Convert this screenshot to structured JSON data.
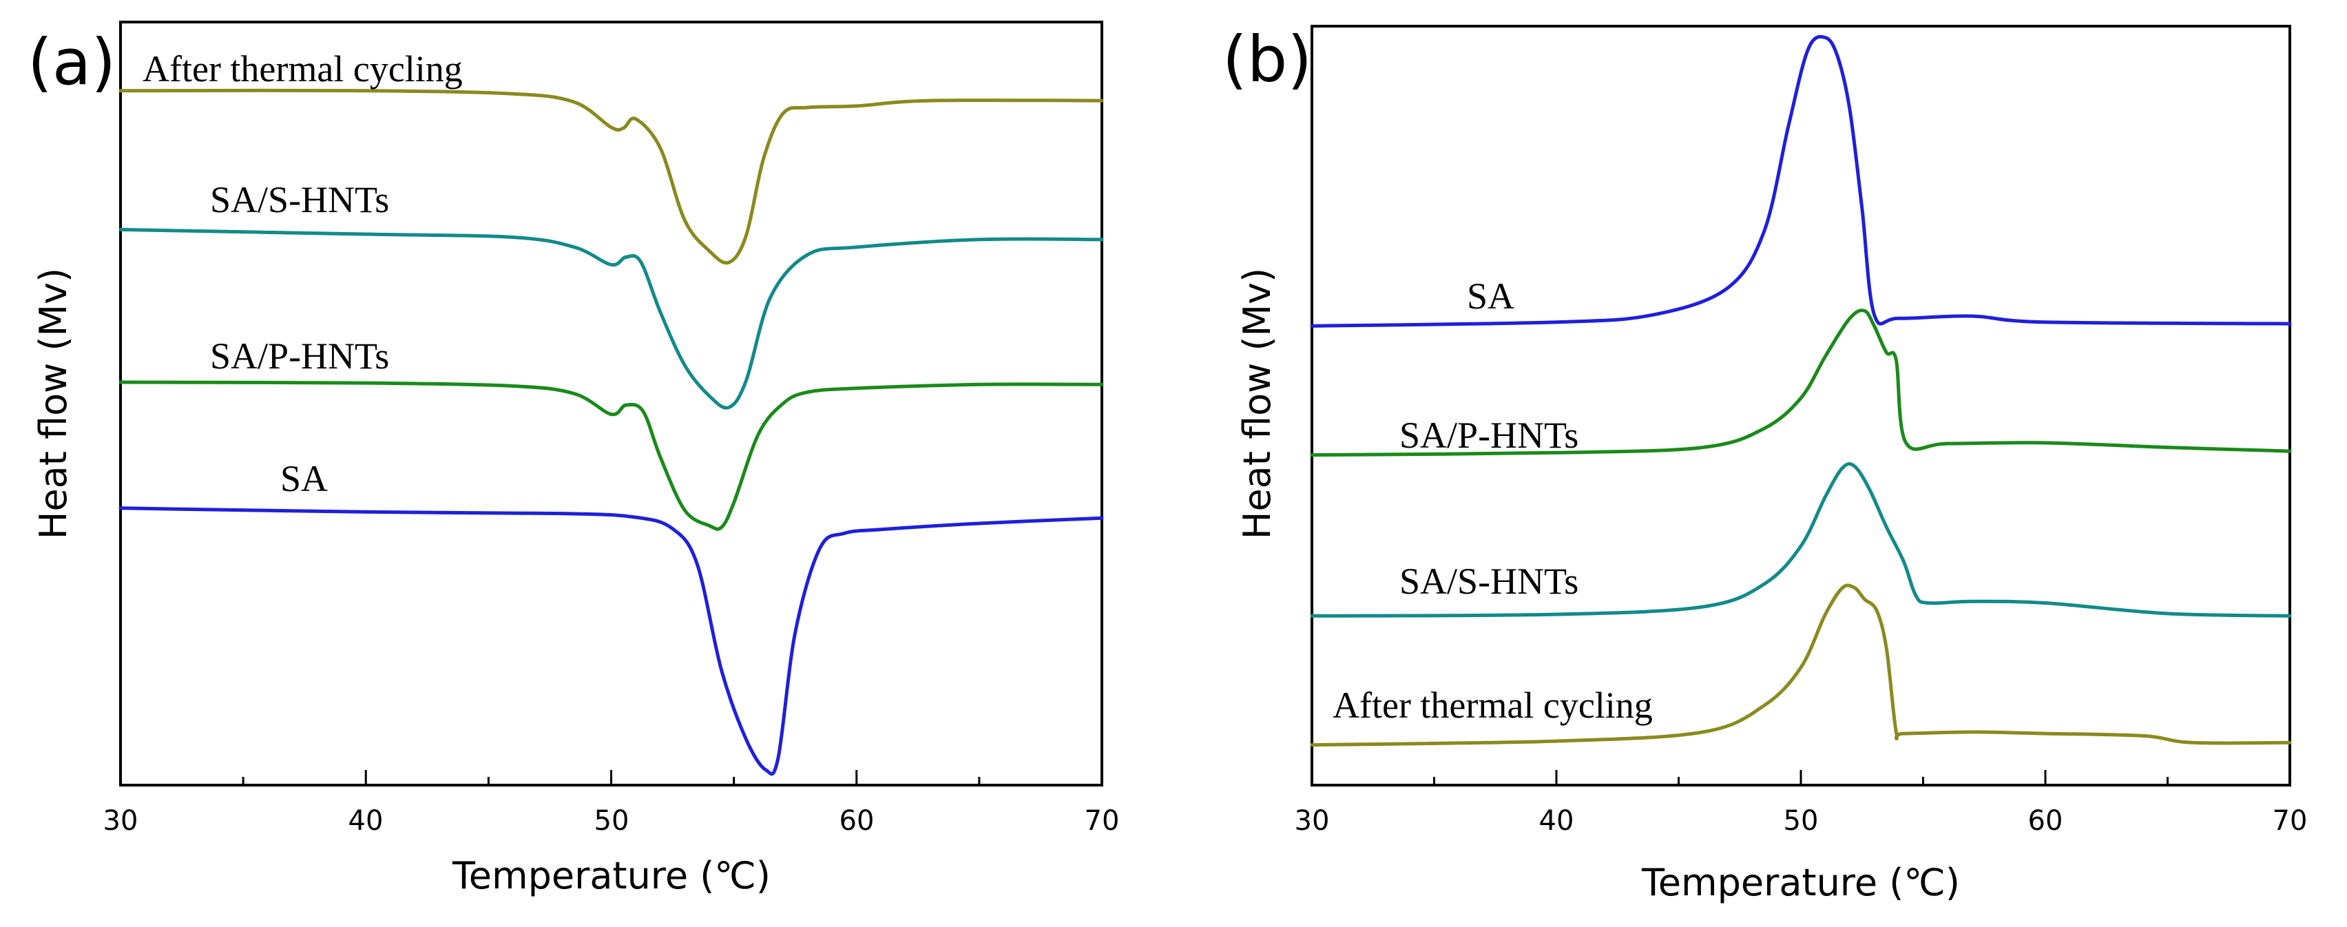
{
  "chart_data": [
    {
      "panel": "(a)",
      "type": "line",
      "xlabel": "Temperature (℃)",
      "ylabel": "Heat flow (Mv)",
      "xlim": [
        30,
        70
      ],
      "xticks": [
        30,
        40,
        50,
        60,
        70
      ],
      "ylim": [
        0,
        100
      ],
      "yticks_shown": false,
      "grid": false,
      "series": [
        {
          "name": "After thermal cycling",
          "color": "#8a8a1e",
          "x": [
            30,
            40,
            46,
            48.5,
            50,
            50.5,
            51,
            52,
            53,
            54,
            54.8,
            55.5,
            56.2,
            57,
            58,
            60,
            63,
            70
          ],
          "y": [
            91,
            91,
            90.6,
            89.5,
            86.2,
            86.1,
            87.3,
            83.5,
            74,
            70,
            68.5,
            72,
            82,
            88,
            88.8,
            89,
            89.7,
            89.7
          ]
        },
        {
          "name": "SA/S-HNTs",
          "color": "#128a8a",
          "x": [
            30,
            40,
            46,
            48.5,
            50,
            50.6,
            51.2,
            52,
            53,
            54,
            54.8,
            55.5,
            56.5,
            58,
            60,
            65,
            70
          ],
          "y": [
            72.8,
            72.2,
            71.8,
            70.5,
            68.2,
            69.2,
            68.6,
            62,
            55,
            51,
            49.5,
            53,
            64,
            69.5,
            70.5,
            71.5,
            71.5
          ]
        },
        {
          "name": "SA/P-HNTs",
          "color": "#1a8a1a",
          "x": [
            30,
            40,
            46,
            48.5,
            50,
            50.6,
            51.3,
            52,
            53,
            54,
            54.5,
            55,
            56,
            57,
            58,
            60,
            65,
            70
          ],
          "y": [
            52.8,
            52.7,
            52.3,
            51.3,
            48.6,
            49.8,
            49,
            43,
            36,
            34,
            33.8,
            37,
            46,
            50,
            51.5,
            52,
            52.5,
            52.5
          ]
        },
        {
          "name": "SA",
          "color": "#1f1fdc",
          "x": [
            30,
            40,
            48,
            51,
            52.5,
            53.5,
            54.5,
            55.5,
            56.3,
            56.8,
            57.5,
            58.5,
            59.5,
            61,
            65,
            70
          ],
          "y": [
            36.3,
            35.8,
            35.6,
            35.1,
            33.6,
            29,
            15,
            6,
            2,
            3.5,
            20,
            31,
            33,
            33.5,
            34.3,
            35
          ]
        }
      ]
    },
    {
      "panel": "(b)",
      "type": "line",
      "xlabel": "Temperature (℃)",
      "ylabel": "Heat flow (Mv)",
      "xlim": [
        30,
        70
      ],
      "xticks": [
        30,
        40,
        50,
        60,
        70
      ],
      "ylim": [
        0,
        100
      ],
      "yticks_shown": false,
      "grid": false,
      "series": [
        {
          "name": "SA",
          "color": "#1f1fdc",
          "x": [
            30,
            40,
            44,
            47,
            48.5,
            49.5,
            50.3,
            51,
            51.5,
            52,
            52.5,
            53,
            54,
            57,
            60,
            70
          ],
          "y": [
            60.5,
            61,
            62,
            65.5,
            73,
            87,
            97,
            98.5,
            96,
            89,
            76,
            62,
            61.5,
            61.8,
            61,
            60.8
          ]
        },
        {
          "name": "SA/P-HNTs",
          "color": "#1a8a1a",
          "x": [
            30,
            40,
            46,
            48.5,
            50,
            51,
            52,
            52.6,
            53,
            53.5,
            53.9,
            54.3,
            56,
            60,
            65,
            70
          ],
          "y": [
            43.5,
            43.8,
            44.5,
            47,
            51,
            56.5,
            61.5,
            62.5,
            60.5,
            57,
            56,
            45.1,
            45,
            45.1,
            44.5,
            44
          ]
        },
        {
          "name": "SA/S-HNTs",
          "color": "#128a8a",
          "x": [
            30,
            40,
            46,
            48.5,
            50,
            51,
            51.7,
            52.2,
            52.8,
            53.5,
            54.2,
            54.7,
            55.2,
            57,
            60,
            65,
            70
          ],
          "y": [
            22.3,
            22.5,
            23.5,
            26.5,
            31.5,
            38,
            41.8,
            42,
            39,
            34,
            29.5,
            25,
            24,
            24.2,
            24,
            22.6,
            22.3
          ]
        },
        {
          "name": "After thermal cycling",
          "color": "#8a8a1e",
          "x": [
            30,
            40,
            46,
            48.5,
            50,
            51,
            51.7,
            52.2,
            52.6,
            53.1,
            53.5,
            53.9,
            54.2,
            57,
            60,
            64,
            66,
            70
          ],
          "y": [
            5.3,
            5.8,
            7,
            10.5,
            15.5,
            22.5,
            26,
            26,
            24.5,
            23,
            18,
            7,
            6.8,
            7,
            6.8,
            6.5,
            5.6,
            5.6
          ]
        }
      ]
    }
  ]
}
